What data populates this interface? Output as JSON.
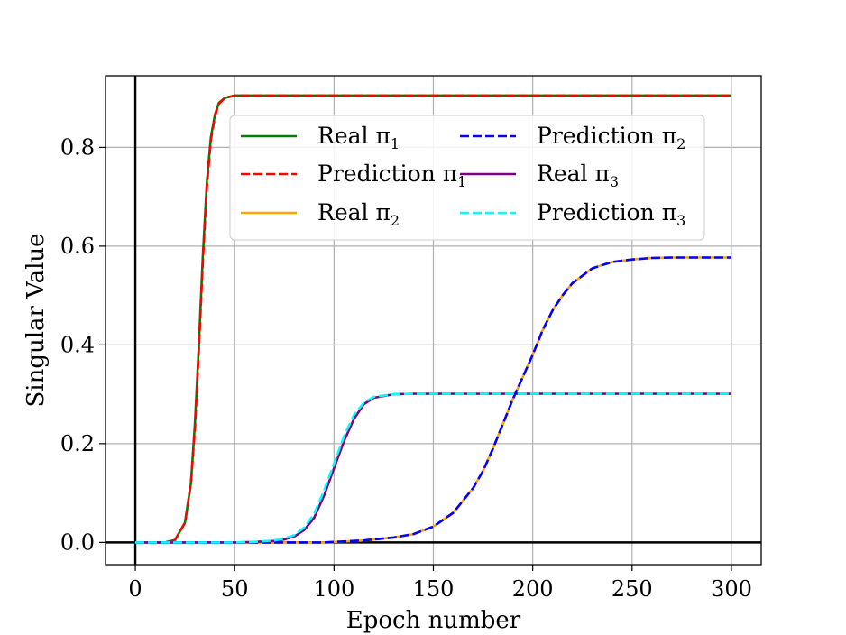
{
  "chart_data": {
    "type": "line",
    "title": "",
    "xlabel": "Epoch number",
    "ylabel": "Singular Value",
    "xlim": [
      -15,
      315
    ],
    "ylim": [
      -0.045,
      0.945
    ],
    "xticks": [
      0,
      50,
      100,
      150,
      200,
      250,
      300
    ],
    "xtick_labels": [
      "0",
      "50",
      "100",
      "150",
      "200",
      "250",
      "300"
    ],
    "yticks": [
      0.0,
      0.2,
      0.4,
      0.6,
      0.8
    ],
    "ytick_labels": [
      "0.0",
      "0.2",
      "0.4",
      "0.6",
      "0.8"
    ],
    "grid": true,
    "reference_lines": {
      "x": 0,
      "y": 0
    },
    "legend_placement": "top-center",
    "legend_columns": 2,
    "x": [
      0,
      10,
      15,
      20,
      25,
      28,
      30,
      32,
      34,
      36,
      38,
      40,
      42,
      45,
      50,
      60,
      70,
      75,
      80,
      85,
      90,
      95,
      100,
      105,
      110,
      115,
      120,
      130,
      140,
      150,
      160,
      170,
      175,
      180,
      185,
      190,
      195,
      200,
      205,
      210,
      215,
      220,
      230,
      240,
      250,
      260,
      270,
      280,
      300
    ],
    "series": [
      {
        "name": "Real π1",
        "label_base": "Real π",
        "label_sub": "1",
        "color": "#008000",
        "dash": "solid",
        "values": [
          0.0,
          0.0,
          0.0,
          0.005,
          0.04,
          0.12,
          0.24,
          0.4,
          0.58,
          0.73,
          0.82,
          0.865,
          0.89,
          0.9,
          0.905,
          0.905,
          0.905,
          0.905,
          0.905,
          0.905,
          0.905,
          0.905,
          0.905,
          0.905,
          0.905,
          0.905,
          0.905,
          0.905,
          0.905,
          0.905,
          0.905,
          0.905,
          0.905,
          0.905,
          0.905,
          0.905,
          0.905,
          0.905,
          0.905,
          0.905,
          0.905,
          0.905,
          0.905,
          0.905,
          0.905,
          0.905,
          0.905,
          0.905,
          0.905
        ]
      },
      {
        "name": "Real π2",
        "label_base": "Real π",
        "label_sub": "2",
        "color": "#ffa500",
        "dash": "solid",
        "values": [
          0.0,
          0.0,
          0.0,
          0.0,
          0.0,
          0.0,
          0.0,
          0.0,
          0.0,
          0.0,
          0.0,
          0.0,
          0.0,
          0.0,
          0.0,
          0.0,
          0.0,
          0.0,
          0.0,
          0.0,
          0.0,
          0.0,
          0.001,
          0.002,
          0.003,
          0.004,
          0.006,
          0.01,
          0.017,
          0.032,
          0.06,
          0.11,
          0.145,
          0.19,
          0.24,
          0.29,
          0.335,
          0.38,
          0.43,
          0.47,
          0.5,
          0.525,
          0.555,
          0.568,
          0.573,
          0.576,
          0.577,
          0.577,
          0.577
        ]
      },
      {
        "name": "Real π3",
        "label_base": "Real π",
        "label_sub": "3",
        "color": "#800080",
        "dash": "solid",
        "values": [
          0.0,
          0.0,
          0.0,
          0.0,
          0.0,
          0.0,
          0.0,
          0.0,
          0.0,
          0.0,
          0.0,
          0.0,
          0.0,
          0.0,
          0.0,
          0.001,
          0.003,
          0.006,
          0.012,
          0.025,
          0.05,
          0.095,
          0.15,
          0.205,
          0.25,
          0.28,
          0.293,
          0.3,
          0.301,
          0.301,
          0.301,
          0.301,
          0.301,
          0.301,
          0.301,
          0.301,
          0.301,
          0.301,
          0.301,
          0.301,
          0.301,
          0.301,
          0.301,
          0.301,
          0.301,
          0.301,
          0.301,
          0.301,
          0.301
        ]
      },
      {
        "name": "Prediction π1",
        "label_base": "Prediction π",
        "label_sub": "1",
        "color": "#ff0000",
        "dash": "dashed",
        "values": [
          0.0,
          0.0,
          0.0,
          0.005,
          0.04,
          0.12,
          0.23,
          0.39,
          0.57,
          0.72,
          0.815,
          0.862,
          0.888,
          0.9,
          0.905,
          0.905,
          0.905,
          0.905,
          0.905,
          0.905,
          0.905,
          0.905,
          0.905,
          0.905,
          0.905,
          0.905,
          0.905,
          0.905,
          0.905,
          0.905,
          0.905,
          0.905,
          0.905,
          0.905,
          0.905,
          0.905,
          0.905,
          0.905,
          0.905,
          0.905,
          0.905,
          0.905,
          0.905,
          0.905,
          0.905,
          0.905,
          0.905,
          0.905,
          0.905
        ]
      },
      {
        "name": "Prediction π2",
        "label_base": "Prediction π",
        "label_sub": "2",
        "color": "#0000ff",
        "dash": "dashed",
        "values": [
          0.0,
          0.0,
          0.0,
          0.0,
          0.0,
          0.0,
          0.0,
          0.0,
          0.0,
          0.0,
          0.0,
          0.0,
          0.0,
          0.0,
          0.0,
          0.0,
          0.0,
          0.0,
          0.0,
          0.0,
          0.0,
          0.0,
          0.001,
          0.002,
          0.003,
          0.004,
          0.006,
          0.01,
          0.017,
          0.032,
          0.06,
          0.11,
          0.145,
          0.19,
          0.24,
          0.29,
          0.335,
          0.38,
          0.43,
          0.47,
          0.5,
          0.525,
          0.555,
          0.568,
          0.573,
          0.576,
          0.577,
          0.577,
          0.577
        ]
      },
      {
        "name": "Prediction π3",
        "label_base": "Prediction π",
        "label_sub": "3",
        "color": "#00ffff",
        "dash": "dashed",
        "values": [
          0.0,
          0.0,
          0.0,
          0.0,
          0.0,
          0.0,
          0.0,
          0.0,
          0.0,
          0.0,
          0.0,
          0.0,
          0.0,
          0.0,
          0.0,
          0.001,
          0.004,
          0.008,
          0.015,
          0.03,
          0.058,
          0.105,
          0.16,
          0.215,
          0.258,
          0.283,
          0.295,
          0.3,
          0.301,
          0.301,
          0.301,
          0.301,
          0.301,
          0.301,
          0.301,
          0.301,
          0.301,
          0.301,
          0.301,
          0.301,
          0.301,
          0.301,
          0.301,
          0.301,
          0.301,
          0.301,
          0.301,
          0.301,
          0.301
        ]
      }
    ],
    "legend_order": [
      0,
      3,
      1,
      4,
      2,
      5
    ]
  }
}
